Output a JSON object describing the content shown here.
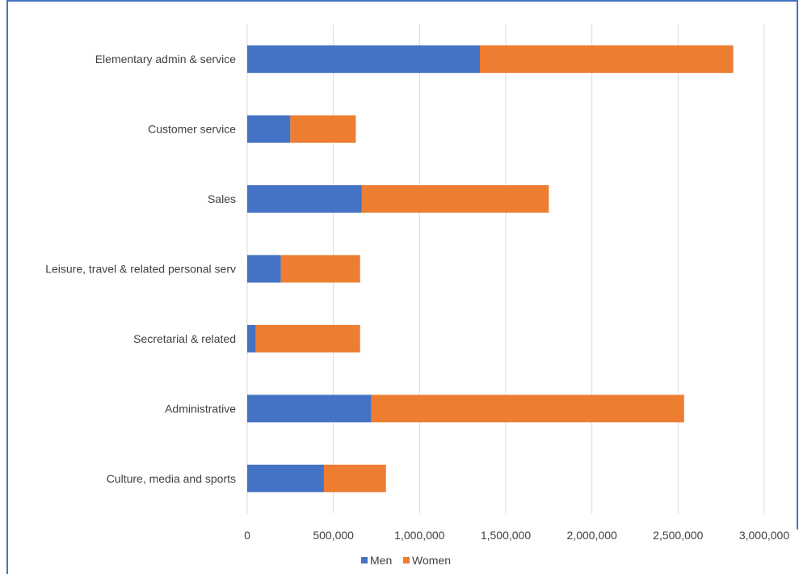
{
  "chart_data": {
    "type": "bar",
    "orientation": "horizontal",
    "stacked": true,
    "categories": [
      "Elementary admin & service",
      "Customer service",
      "Sales",
      "Leisure, travel & related personal serv",
      "Secretarial & related",
      "Administrative",
      "Culture, media and sports"
    ],
    "series": [
      {
        "name": "Men",
        "color": "#4472c4",
        "values": [
          1350000,
          250000,
          665000,
          195000,
          50000,
          720000,
          445000
        ]
      },
      {
        "name": "Women",
        "color": "#ed7d31",
        "values": [
          1470000,
          380000,
          1085000,
          460000,
          605000,
          1815000,
          360000
        ]
      }
    ],
    "xlim": [
      0,
      3000000
    ],
    "xticks": [
      "0",
      "500,000",
      "1,000,000",
      "1,500,000",
      "2,000,000",
      "2,500,000",
      "3,000,000"
    ],
    "grid": true,
    "legend": "bottom"
  }
}
